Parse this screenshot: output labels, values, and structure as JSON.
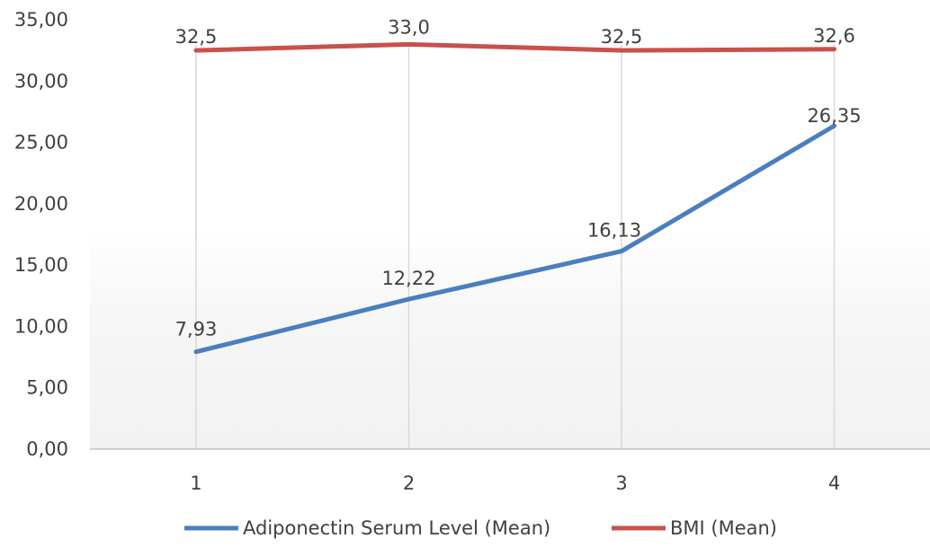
{
  "chart_data": {
    "type": "line",
    "categories": [
      "1",
      "2",
      "3",
      "4"
    ],
    "series": [
      {
        "name": "Adiponectin Serum Level (Mean)",
        "values": [
          7.93,
          12.22,
          16.13,
          26.35
        ],
        "labels": [
          "7,93",
          "12,22",
          "16,13",
          "26,35"
        ],
        "color": "#4a7ebf"
      },
      {
        "name": "BMI (Mean)",
        "values": [
          32.5,
          33.0,
          32.5,
          32.6
        ],
        "labels": [
          "32,5",
          "33,0",
          "32,5",
          "32,6"
        ],
        "color": "#c9504b"
      }
    ],
    "ylim": [
      0,
      35
    ],
    "y_ticks": [
      0,
      5,
      10,
      15,
      20,
      25,
      30,
      35
    ],
    "y_tick_labels": [
      "0,00",
      "5,00",
      "10,00",
      "15,00",
      "20,00",
      "25,00",
      "30,00",
      "35,00"
    ],
    "grid": "vertical",
    "legend_position": "bottom",
    "title": "",
    "xlabel": "",
    "ylabel": ""
  }
}
